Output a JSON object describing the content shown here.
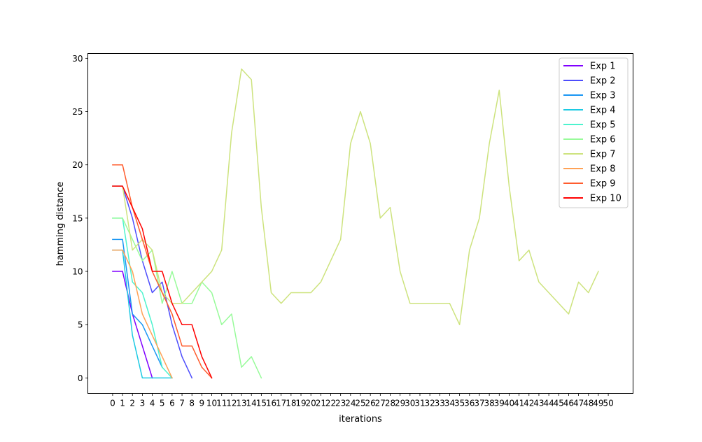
{
  "chart_data": {
    "type": "line",
    "xlabel": "iterations",
    "ylabel": "hamming distance",
    "xlim": [
      -2.5,
      52.5
    ],
    "ylim": [
      -1.45,
      30.45
    ],
    "xticks": [
      0,
      1,
      2,
      3,
      4,
      5,
      6,
      7,
      8,
      9,
      10,
      11,
      12,
      13,
      14,
      15,
      16,
      17,
      18,
      19,
      20,
      21,
      22,
      23,
      24,
      25,
      26,
      27,
      28,
      29,
      30,
      31,
      32,
      33,
      34,
      35,
      36,
      37,
      38,
      39,
      40,
      41,
      42,
      43,
      44,
      45,
      46,
      47,
      48,
      49,
      50
    ],
    "yticks": [
      0,
      5,
      10,
      15,
      20,
      25,
      30
    ],
    "grid": false,
    "legend_position": "top-right",
    "series": [
      {
        "name": "Exp 1",
        "color": "#8000ff",
        "x": [
          0,
          1,
          2,
          3,
          4
        ],
        "y": [
          10,
          10,
          6,
          3,
          0
        ]
      },
      {
        "name": "Exp 2",
        "color": "#4d4dfc",
        "x": [
          0,
          1,
          2,
          3,
          4,
          5,
          6,
          7,
          8
        ],
        "y": [
          18,
          18,
          15,
          11,
          8,
          9,
          5,
          2,
          0
        ]
      },
      {
        "name": "Exp 3",
        "color": "#1996f3",
        "x": [
          0,
          1,
          2,
          3,
          4,
          5
        ],
        "y": [
          13,
          13,
          6,
          5,
          3,
          1
        ]
      },
      {
        "name": "Exp 4",
        "color": "#1ccae3",
        "x": [
          0,
          1,
          2,
          3,
          4,
          5,
          6
        ],
        "y": [
          12,
          12,
          4,
          0,
          0,
          0,
          0
        ]
      },
      {
        "name": "Exp 5",
        "color": "#4df3ce",
        "x": [
          0,
          1,
          2,
          3,
          4,
          5,
          6
        ],
        "y": [
          15,
          15,
          9,
          8,
          5,
          1,
          0
        ]
      },
      {
        "name": "Exp 6",
        "color": "#98fb9a",
        "x": [
          0,
          1,
          2,
          3,
          4,
          5,
          6,
          7,
          8,
          9,
          10,
          11,
          12,
          13,
          14,
          15
        ],
        "y": [
          15,
          15,
          13,
          11,
          12,
          7,
          10,
          7,
          7,
          9,
          8,
          5,
          6,
          1,
          2,
          0
        ]
      },
      {
        "name": "Exp 7",
        "color": "#cde37e",
        "x": [
          0,
          1,
          2,
          3,
          4,
          5,
          6,
          7,
          8,
          9,
          10,
          11,
          12,
          13,
          14,
          15,
          16,
          17,
          18,
          19,
          20,
          21,
          22,
          23,
          24,
          25,
          26,
          27,
          28,
          29,
          30,
          31,
          32,
          33,
          34,
          35,
          36,
          37,
          38,
          39,
          40,
          41,
          42,
          43,
          44,
          45,
          46,
          47,
          48,
          49
        ],
        "y": [
          18,
          18,
          12,
          13,
          12,
          8,
          7,
          7,
          8,
          9,
          10,
          12,
          23,
          29,
          28,
          16,
          8,
          7,
          8,
          8,
          8,
          9,
          11,
          13,
          22,
          25,
          22,
          15,
          16,
          10,
          7,
          7,
          7,
          7,
          7,
          5,
          12,
          15,
          22,
          27,
          18,
          11,
          12,
          9,
          8,
          7,
          6,
          9,
          8,
          10
        ]
      },
      {
        "name": "Exp 8",
        "color": "#ffa256",
        "x": [
          0,
          1,
          2,
          3,
          4,
          5,
          6
        ],
        "y": [
          12,
          12,
          10,
          6,
          4,
          2,
          0
        ]
      },
      {
        "name": "Exp 9",
        "color": "#ff5c2e",
        "x": [
          0,
          1,
          2,
          3,
          4,
          5,
          6,
          7,
          8,
          9,
          10
        ],
        "y": [
          20,
          20,
          16,
          13,
          10,
          8,
          6,
          3,
          3,
          1,
          0
        ]
      },
      {
        "name": "Exp 10",
        "color": "#ff0000",
        "x": [
          0,
          1,
          2,
          3,
          4,
          5,
          6,
          7,
          8,
          9,
          10
        ],
        "y": [
          18,
          18,
          16,
          14,
          10,
          10,
          7,
          5,
          5,
          2,
          0
        ]
      }
    ]
  }
}
